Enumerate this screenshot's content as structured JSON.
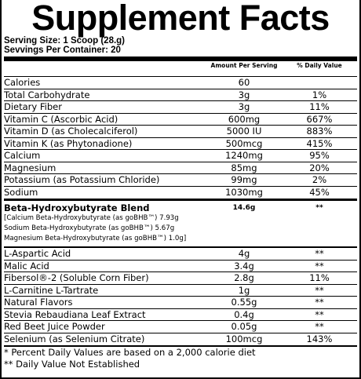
{
  "title": "Supplement Facts",
  "serving_size": "Serving Size: 1 Scoop (28.g)",
  "servings_per_container": "Sevvings Per Container: 20",
  "table": {
    "header": [
      "Amount Per Serving",
      "% Daily Value"
    ],
    "rows": [
      [
        "Calories",
        "60"
      ],
      [
        "Total Carbohydrate",
        "3g",
        "1%"
      ],
      [
        "Dietary Fiber",
        "3g",
        "11%"
      ],
      [
        "Vitamin C (Ascorbic Acid)",
        "600mg",
        "667%"
      ],
      [
        "Vitamin D (as Cholecalciferol)",
        "5000 IU",
        "883%"
      ],
      [
        "Vitamin K (as Phytonadione)",
        "500mcg",
        "415%"
      ],
      [
        "Calcium",
        "1240mg",
        "95%"
      ],
      [
        "Magnesium",
        "85mg",
        "20%"
      ],
      [
        "Potassium (as Potassium Chloride)",
        "99mg",
        "2%"
      ],
      [
        "Sodium",
        "1030mg",
        "45%"
      ]
    ],
    "blend": {
      "name": "Beta-Hydroxybutyrate Blend",
      "amount": "14.6g",
      "dv": "**",
      "items": [
        "[Calcium Beta-Hydroxybutyrate (as goBHB™) 7.93g",
        "Sodium Beta-Hydroxybutyrate (as goBHB™) 5.67g",
        "Magnesium Beta-Hydroxybutyrate (as goBHB™) 1.0g]"
      ]
    },
    "rows2": [
      [
        "L-Aspartic Acid",
        "4g",
        "**"
      ],
      [
        "Malic Acid",
        "3.4g",
        "**"
      ],
      [
        "Fibersol®-2 (Soluble Corn Fiber)",
        "2.8g",
        "11%"
      ],
      [
        "L-Carnitine L-Tartrate",
        "1g",
        "**"
      ],
      [
        "Natural Flavors",
        "0.55g",
        "**"
      ],
      [
        "Stevia Rebaudiana Leaf Extract",
        "0.4g",
        "**"
      ],
      [
        "Red Beet Juice Powder",
        "0.05g",
        "**"
      ],
      [
        "Selenium (as Selenium Citrate)",
        "100mcg",
        "143%"
      ]
    ]
  },
  "footnotes": [
    "* Percent Daily Values are based on a 2,000 calorie diet",
    "** Daily Value Not Established"
  ]
}
